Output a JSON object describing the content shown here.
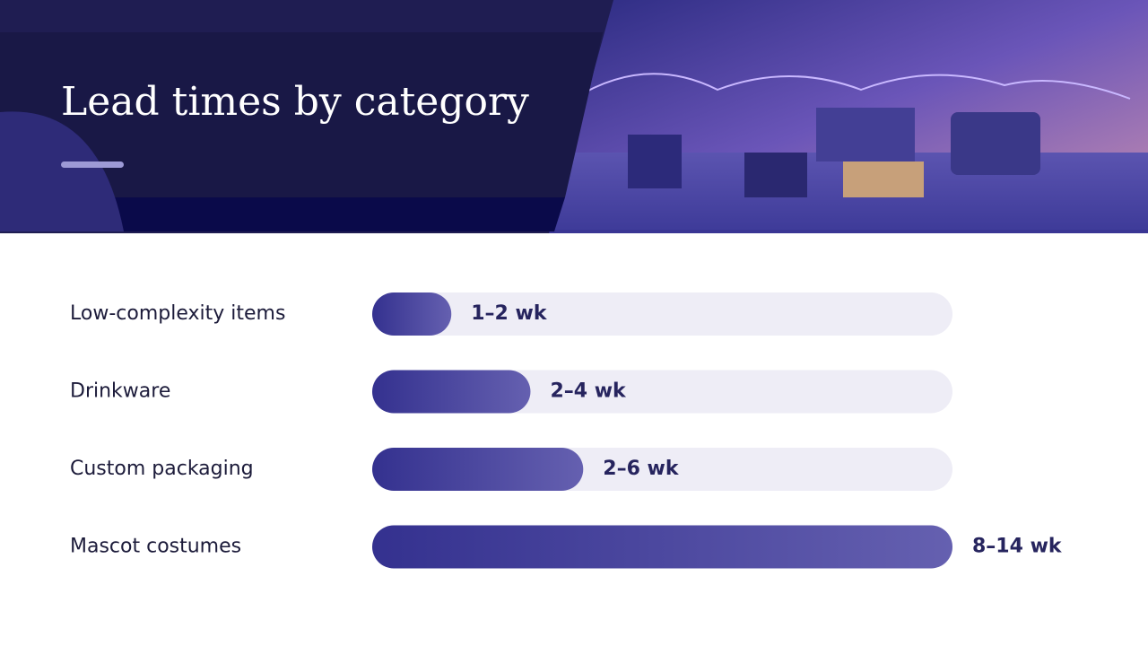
{
  "chart_data": {
    "type": "bar",
    "orientation": "horizontal",
    "title": "Lead times by category",
    "categories": [
      "Low-complexity items",
      "Drinkware",
      "Custom packaging",
      "Mascot costumes"
    ],
    "values": [
      1.5,
      3,
      4,
      11
    ],
    "value_labels": [
      "1–2 wk",
      "2–4 wk",
      "2–6 wk",
      "8–14 wk"
    ],
    "xlim": [
      0,
      11
    ],
    "color": "#3a3694",
    "track_color": "#eeedf6"
  }
}
